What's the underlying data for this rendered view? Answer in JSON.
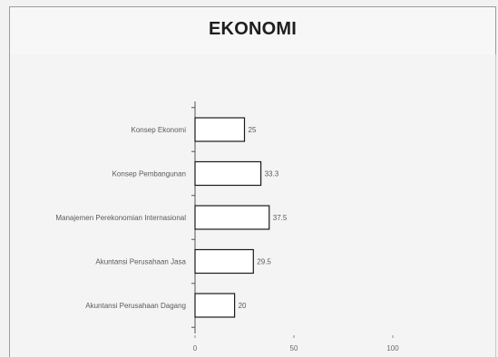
{
  "chart_data": {
    "type": "bar",
    "orientation": "horizontal",
    "title": "EKONOMI",
    "categories": [
      "Konsep Ekonomi",
      "Konsep Pembangunan",
      "Manajemen Perekonomian Internasional",
      "Akuntansi Perusahaan Jasa",
      "Akuntansi Perusahaan Dagang"
    ],
    "values": [
      25,
      33.3,
      37.5,
      29.5,
      20
    ],
    "value_labels": [
      "25",
      "33.3",
      "37.5",
      "29.5",
      "20"
    ],
    "xlim": [
      0,
      100
    ],
    "xticks": [
      "0",
      "50",
      "100"
    ],
    "xlabel": "",
    "ylabel": "",
    "grid": false,
    "colors": {
      "bar_fill": "#ffffff",
      "bar_stroke": "#1a1a1a",
      "axis": "#555555"
    }
  }
}
